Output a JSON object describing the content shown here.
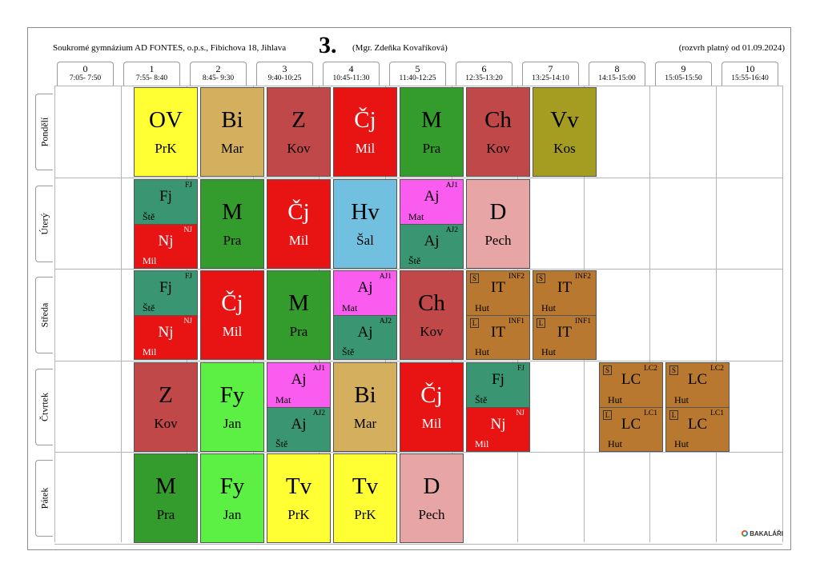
{
  "header": {
    "school": "Soukromé gymnázium AD FONTES, o.p.s., Fibichova 18, Jihlava",
    "class": "3.",
    "teacher": "(Mgr. Zdeňka Kovaříková)",
    "valid": "(rozvrh platný od 01.09.2024)"
  },
  "periods": [
    {
      "num": "0",
      "time": "7:05- 7:50"
    },
    {
      "num": "1",
      "time": "7:55- 8:40"
    },
    {
      "num": "2",
      "time": "8:45- 9:30"
    },
    {
      "num": "3",
      "time": "9:40-10:25"
    },
    {
      "num": "4",
      "time": "10:45-11:30"
    },
    {
      "num": "5",
      "time": "11:40-12:25"
    },
    {
      "num": "6",
      "time": "12:35-13:20"
    },
    {
      "num": "7",
      "time": "13:25-14:10"
    },
    {
      "num": "8",
      "time": "14:15-15:00"
    },
    {
      "num": "9",
      "time": "15:05-15:50"
    },
    {
      "num": "10",
      "time": "15:55-16:40"
    }
  ],
  "days": [
    "Pondělí",
    "Úterý",
    "Středa",
    "Čtvrtek",
    "Pátek"
  ],
  "colors": {
    "yellow": "#ffff33",
    "tan": "#d4b05e",
    "brickred": "#c04848",
    "red": "#e81313",
    "green": "#349c2c",
    "olive": "#a59c22",
    "teal": "#3a9572",
    "blue": "#72c0e0",
    "magenta": "#fb5cf0",
    "pink": "#e8a5a5",
    "lime": "#5cf044",
    "brown": "#b8782f"
  },
  "lessons": [
    {
      "day": 0,
      "period": 1,
      "subject": "OV",
      "teacher": "PrK",
      "color": "yellow"
    },
    {
      "day": 0,
      "period": 2,
      "subject": "Bi",
      "teacher": "Mar",
      "color": "tan"
    },
    {
      "day": 0,
      "period": 3,
      "subject": "Z",
      "teacher": "Kov",
      "color": "brickred"
    },
    {
      "day": 0,
      "period": 4,
      "subject": "Čj",
      "teacher": "Mil",
      "color": "red"
    },
    {
      "day": 0,
      "period": 5,
      "subject": "M",
      "teacher": "Pra",
      "color": "green"
    },
    {
      "day": 0,
      "period": 6,
      "subject": "Ch",
      "teacher": "Kov",
      "color": "brickred"
    },
    {
      "day": 0,
      "period": 7,
      "subject": "Vv",
      "teacher": "Kos",
      "color": "olive"
    },
    {
      "day": 1,
      "period": 1,
      "split": [
        {
          "subject": "Fj",
          "teacher": "Ště",
          "group": "FJ",
          "color": "teal"
        },
        {
          "subject": "Nj",
          "teacher": "Mil",
          "group": "NJ",
          "color": "red"
        }
      ]
    },
    {
      "day": 1,
      "period": 2,
      "subject": "M",
      "teacher": "Pra",
      "color": "green"
    },
    {
      "day": 1,
      "period": 3,
      "subject": "Čj",
      "teacher": "Mil",
      "color": "red"
    },
    {
      "day": 1,
      "period": 4,
      "subject": "Hv",
      "teacher": "Šal",
      "color": "blue"
    },
    {
      "day": 1,
      "period": 5,
      "split": [
        {
          "subject": "Aj",
          "teacher": "Mat",
          "group": "AJ1",
          "color": "magenta"
        },
        {
          "subject": "Aj",
          "teacher": "Ště",
          "group": "AJ2",
          "color": "teal"
        }
      ]
    },
    {
      "day": 1,
      "period": 6,
      "subject": "D",
      "teacher": "Pech",
      "color": "pink"
    },
    {
      "day": 2,
      "period": 1,
      "split": [
        {
          "subject": "Fj",
          "teacher": "Ště",
          "group": "FJ",
          "color": "teal"
        },
        {
          "subject": "Nj",
          "teacher": "Mil",
          "group": "NJ",
          "color": "red"
        }
      ]
    },
    {
      "day": 2,
      "period": 2,
      "subject": "Čj",
      "teacher": "Mil",
      "color": "red"
    },
    {
      "day": 2,
      "period": 3,
      "subject": "M",
      "teacher": "Pra",
      "color": "green"
    },
    {
      "day": 2,
      "period": 4,
      "split": [
        {
          "subject": "Aj",
          "teacher": "Mat",
          "group": "AJ1",
          "color": "magenta"
        },
        {
          "subject": "Aj",
          "teacher": "Ště",
          "group": "AJ2",
          "color": "teal"
        }
      ]
    },
    {
      "day": 2,
      "period": 5,
      "subject": "Ch",
      "teacher": "Kov",
      "color": "brickred"
    },
    {
      "day": 2,
      "period": 6,
      "split": [
        {
          "subject": "IT",
          "teacher": "Hut",
          "group": "INF2",
          "week": "S",
          "color": "brown"
        },
        {
          "subject": "IT",
          "teacher": "Hut",
          "group": "INF1",
          "week": "L",
          "color": "brown"
        }
      ]
    },
    {
      "day": 2,
      "period": 7,
      "split": [
        {
          "subject": "IT",
          "teacher": "Hut",
          "group": "INF2",
          "week": "S",
          "color": "brown"
        },
        {
          "subject": "IT",
          "teacher": "Hut",
          "group": "INF1",
          "week": "L",
          "color": "brown"
        }
      ]
    },
    {
      "day": 3,
      "period": 1,
      "subject": "Z",
      "teacher": "Kov",
      "color": "brickred"
    },
    {
      "day": 3,
      "period": 2,
      "subject": "Fy",
      "teacher": "Jan",
      "color": "lime"
    },
    {
      "day": 3,
      "period": 3,
      "split": [
        {
          "subject": "Aj",
          "teacher": "Mat",
          "group": "AJ1",
          "color": "magenta"
        },
        {
          "subject": "Aj",
          "teacher": "Ště",
          "group": "AJ2",
          "color": "teal"
        }
      ]
    },
    {
      "day": 3,
      "period": 4,
      "subject": "Bi",
      "teacher": "Mar",
      "color": "tan"
    },
    {
      "day": 3,
      "period": 5,
      "subject": "Čj",
      "teacher": "Mil",
      "color": "red"
    },
    {
      "day": 3,
      "period": 6,
      "split": [
        {
          "subject": "Fj",
          "teacher": "Ště",
          "group": "FJ",
          "color": "teal"
        },
        {
          "subject": "Nj",
          "teacher": "Mil",
          "group": "NJ",
          "color": "red"
        }
      ]
    },
    {
      "day": 3,
      "period": 8,
      "split": [
        {
          "subject": "LC",
          "teacher": "Hut",
          "group": "LC2",
          "week": "S",
          "color": "brown"
        },
        {
          "subject": "LC",
          "teacher": "Hut",
          "group": "LC1",
          "week": "L",
          "color": "brown"
        }
      ]
    },
    {
      "day": 3,
      "period": 9,
      "split": [
        {
          "subject": "LC",
          "teacher": "Hut",
          "group": "LC2",
          "week": "S",
          "color": "brown"
        },
        {
          "subject": "LC",
          "teacher": "Hut",
          "group": "LC1",
          "week": "L",
          "color": "brown"
        }
      ]
    },
    {
      "day": 4,
      "period": 1,
      "subject": "M",
      "teacher": "Pra",
      "color": "green"
    },
    {
      "day": 4,
      "period": 2,
      "subject": "Fy",
      "teacher": "Jan",
      "color": "lime"
    },
    {
      "day": 4,
      "period": 3,
      "subject": "Tv",
      "teacher": "PrK",
      "color": "yellow"
    },
    {
      "day": 4,
      "period": 4,
      "subject": "Tv",
      "teacher": "PrK",
      "color": "yellow"
    },
    {
      "day": 4,
      "period": 5,
      "subject": "D",
      "teacher": "Pech",
      "color": "pink"
    }
  ],
  "footer": {
    "logo": "BAKALÁŘI",
    "logo_icon": "bakalari-logo-icon"
  }
}
